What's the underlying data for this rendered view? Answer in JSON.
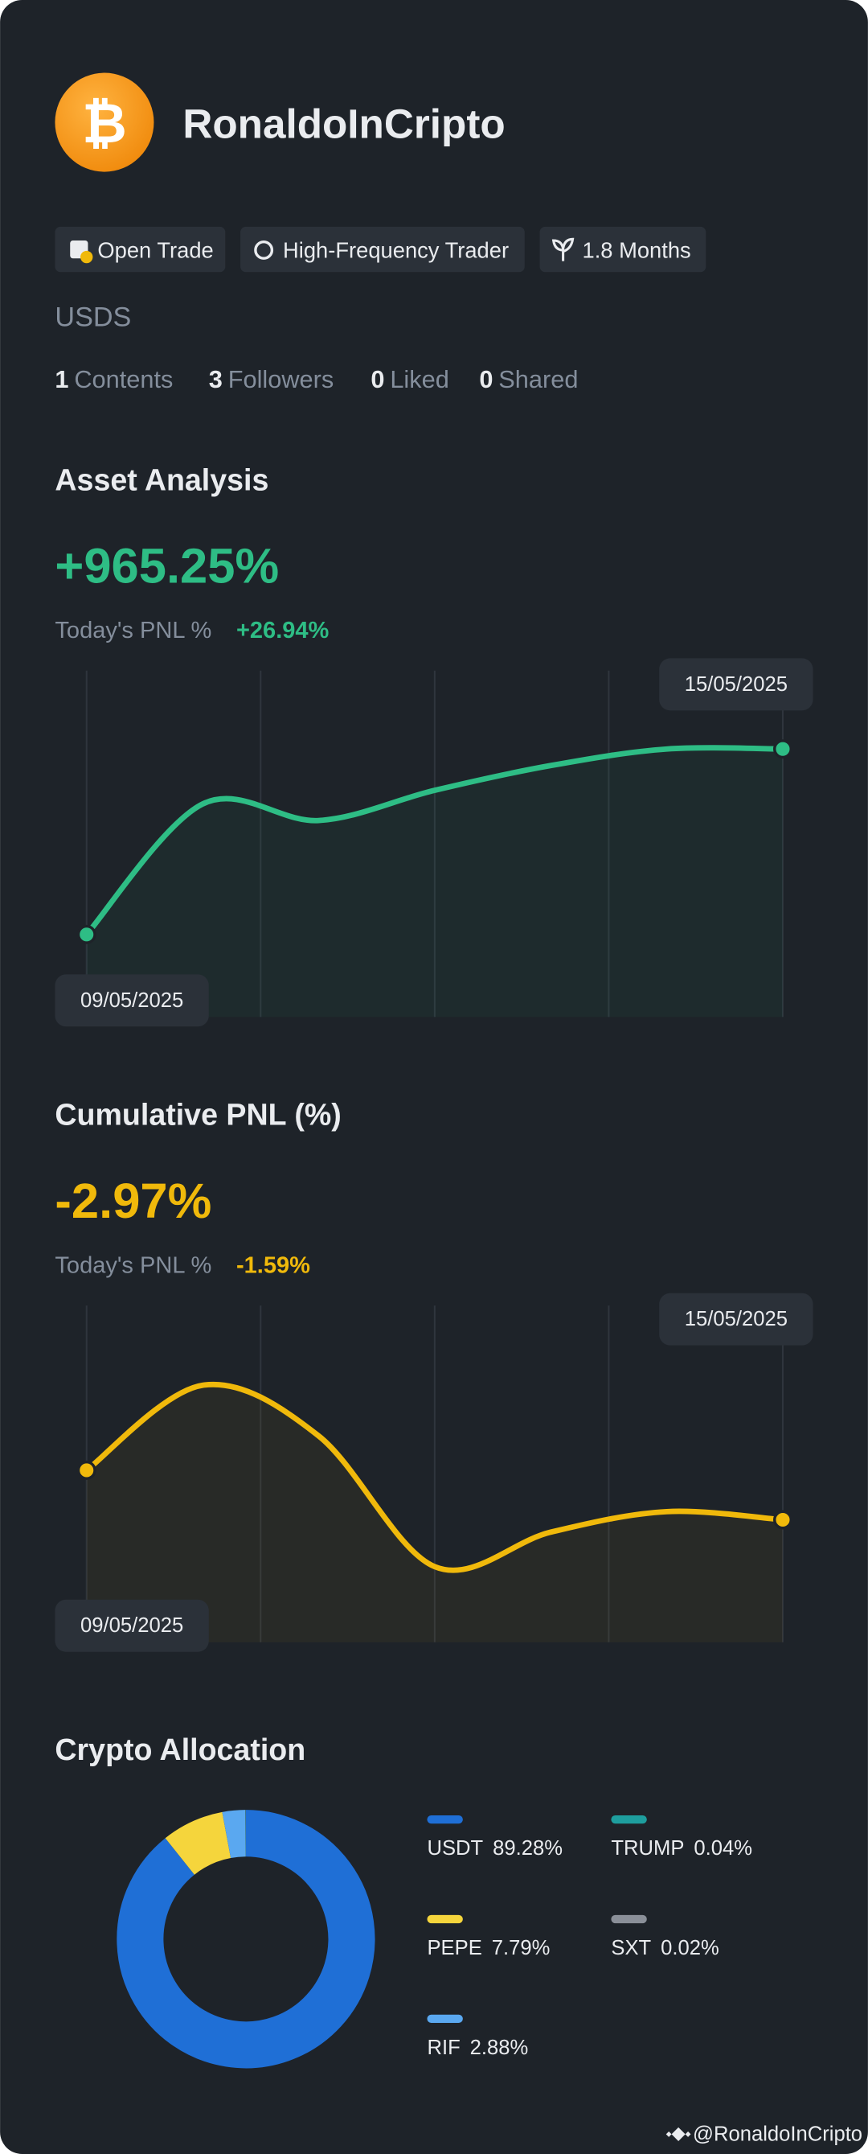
{
  "profile": {
    "name": "RonaldoInCripto",
    "badges": [
      "Open Trade",
      "High-Frequency Trader",
      "1.8 Months"
    ],
    "quote_asset": "USDS",
    "stats": [
      {
        "count": "1",
        "label": "Contents"
      },
      {
        "count": "3",
        "label": "Followers"
      },
      {
        "count": "0",
        "label": "Liked"
      },
      {
        "count": "0",
        "label": "Shared"
      }
    ]
  },
  "chart_data": [
    {
      "type": "line",
      "title": "Asset Analysis",
      "headline": "+965.25%",
      "today_label": "Today's PNL %",
      "today_value": "+26.94%",
      "color": "#2ebd85",
      "categories": [
        "09/05/2025",
        null,
        null,
        null,
        null,
        null,
        "15/05/2025"
      ],
      "values": [
        0,
        679,
        593,
        750,
        879,
        965,
        965.25
      ]
    },
    {
      "type": "line",
      "title": "Cumulative PNL (%)",
      "headline": "-2.97%",
      "today_label": "Today's PNL %",
      "today_value": "-1.59%",
      "color": "#f0b90b",
      "categories": [
        "09/05/2025",
        null,
        null,
        null,
        null,
        null,
        "15/05/2025"
      ],
      "values": [
        0,
        5.1,
        2.06,
        -5.78,
        -3.71,
        -2.48,
        -2.97
      ]
    },
    {
      "type": "donut",
      "title": "Crypto Allocation",
      "categories": [
        "USDT",
        "PEPE",
        "RIF",
        "TRUMP",
        "SXT"
      ],
      "values": [
        89.28,
        7.79,
        2.88,
        0.04,
        0.02
      ],
      "value_labels": [
        "89.28%",
        "7.79%",
        "2.88%",
        "0.04%",
        "0.02%"
      ],
      "colors": [
        "#1f6fd6",
        "#f5d53c",
        "#5aa8f0",
        "#1e9e9e",
        "#8a8f98"
      ]
    }
  ],
  "footer": "@RonaldoInCripto"
}
